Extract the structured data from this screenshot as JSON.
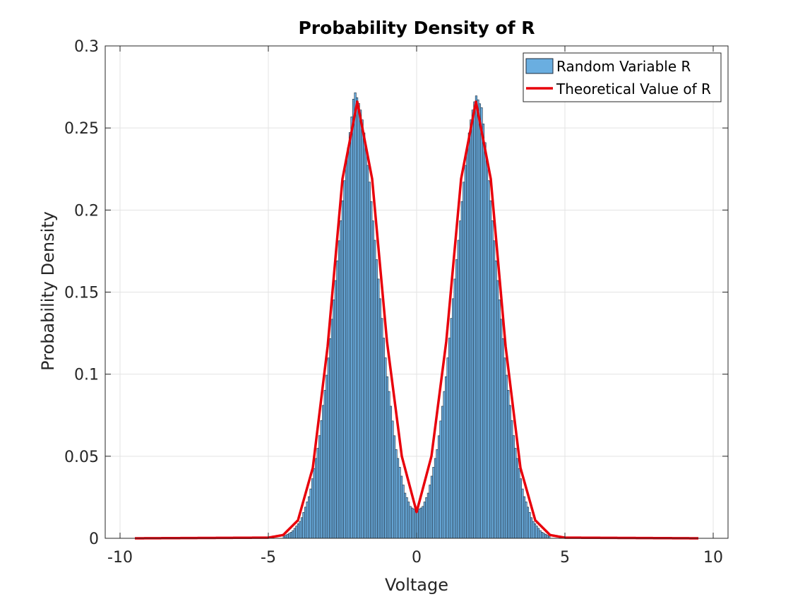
{
  "chart_data": {
    "type": "bar",
    "title": "Probability Density of R",
    "xlabel": "Voltage",
    "ylabel": "Probability Density",
    "xlim": [
      -10.5,
      10.5
    ],
    "ylim": [
      0,
      0.3
    ],
    "grid": true,
    "legend_position": "top-right",
    "x_ticks": [
      -10,
      -5,
      0,
      5,
      10
    ],
    "x_tick_labels": [
      "-10",
      "-5",
      "0",
      "5",
      "10"
    ],
    "y_ticks": [
      0,
      0.05,
      0.1,
      0.15,
      0.2,
      0.25,
      0.3
    ],
    "y_tick_labels": [
      "0",
      "0.05",
      "0.1",
      "0.15",
      "0.2",
      "0.25",
      "0.3"
    ],
    "series": [
      {
        "name": "Random Variable R",
        "kind": "histogram",
        "color": "#6aaee0",
        "edge_color": "#1f2a38",
        "x": [
          -4.5,
          -4.2,
          -3.9,
          -3.6,
          -3.3,
          -3.0,
          -2.7,
          -2.4,
          -2.2,
          -2.1,
          -2.0,
          -1.9,
          -1.8,
          -1.6,
          -1.3,
          -1.0,
          -0.7,
          -0.4,
          -0.2,
          0.0,
          0.2,
          0.4,
          0.7,
          1.0,
          1.3,
          1.6,
          1.8,
          1.9,
          2.0,
          2.1,
          2.2,
          2.4,
          2.7,
          3.0,
          3.3,
          3.6,
          3.9,
          4.2,
          4.5
        ],
        "values": [
          0.001,
          0.004,
          0.011,
          0.027,
          0.058,
          0.104,
          0.163,
          0.224,
          0.255,
          0.273,
          0.268,
          0.262,
          0.252,
          0.219,
          0.16,
          0.1,
          0.055,
          0.028,
          0.019,
          0.017,
          0.019,
          0.028,
          0.055,
          0.1,
          0.16,
          0.219,
          0.252,
          0.262,
          0.27,
          0.266,
          0.262,
          0.224,
          0.163,
          0.104,
          0.058,
          0.027,
          0.011,
          0.004,
          0.001
        ]
      },
      {
        "name": "Theoretical Value of R",
        "kind": "line",
        "color": "#e8000b",
        "x": [
          -9.5,
          -5.0,
          -4.5,
          -4.0,
          -3.5,
          -3.0,
          -2.5,
          -2.0,
          -1.5,
          -1.0,
          -0.5,
          0.0,
          0.5,
          1.0,
          1.5,
          2.0,
          2.5,
          3.0,
          3.5,
          4.0,
          4.5,
          5.0,
          9.5
        ],
        "values": [
          0.0,
          0.0004,
          0.002,
          0.011,
          0.043,
          0.117,
          0.219,
          0.266,
          0.219,
          0.12,
          0.05,
          0.016,
          0.05,
          0.12,
          0.219,
          0.266,
          0.219,
          0.117,
          0.043,
          0.011,
          0.002,
          0.0004,
          0.0
        ]
      }
    ]
  }
}
